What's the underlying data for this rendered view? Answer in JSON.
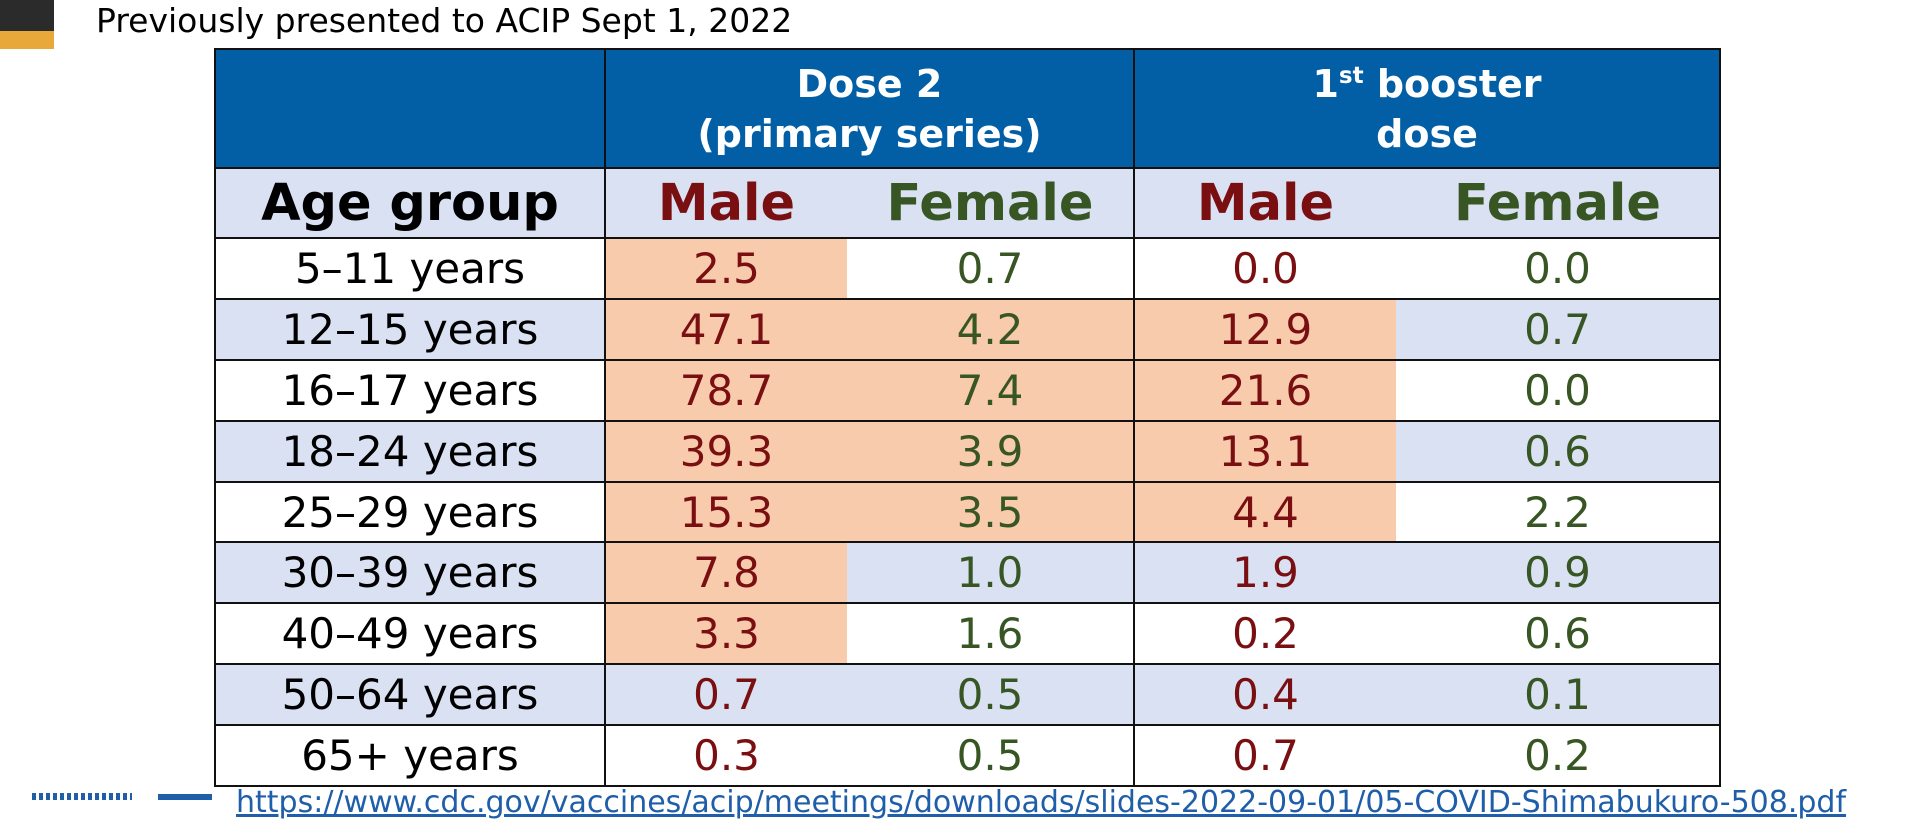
{
  "note": "Previously presented to ACIP Sept 1, 2022",
  "table": {
    "header_top": {
      "dose2_line1": "Dose 2",
      "dose2_line2": "(primary series)",
      "booster_ordinal": "1",
      "booster_sup": "st",
      "booster_line1_rest": " booster",
      "booster_line2": "dose"
    },
    "header_sub": {
      "age": "Age group",
      "male": "Male",
      "female": "Female"
    },
    "rows": [
      {
        "age": "5–11 years",
        "dose2_male": "2.5",
        "dose2_female": "0.7",
        "booster_male": "0.0",
        "booster_female": "0.0"
      },
      {
        "age": "12–15 years",
        "dose2_male": "47.1",
        "dose2_female": "4.2",
        "booster_male": "12.9",
        "booster_female": "0.7"
      },
      {
        "age": "16–17 years",
        "dose2_male": "78.7",
        "dose2_female": "7.4",
        "booster_male": "21.6",
        "booster_female": "0.0"
      },
      {
        "age": "18–24 years",
        "dose2_male": "39.3",
        "dose2_female": "3.9",
        "booster_male": "13.1",
        "booster_female": "0.6"
      },
      {
        "age": "25–29 years",
        "dose2_male": "15.3",
        "dose2_female": "3.5",
        "booster_male": "4.4",
        "booster_female": "2.2"
      },
      {
        "age": "30–39 years",
        "dose2_male": "7.8",
        "dose2_female": "1.0",
        "booster_male": "1.9",
        "booster_female": "0.9"
      },
      {
        "age": "40–49 years",
        "dose2_male": "3.3",
        "dose2_female": "1.6",
        "booster_male": "0.2",
        "booster_female": "0.6"
      },
      {
        "age": "50–64 years",
        "dose2_male": "0.7",
        "dose2_female": "0.5",
        "booster_male": "0.4",
        "booster_female": "0.1"
      },
      {
        "age": "65+ years",
        "dose2_male": "0.3",
        "dose2_female": "0.5",
        "booster_male": "0.7",
        "booster_female": "0.2"
      }
    ]
  },
  "footer_link": "https://www.cdc.gov/vaccines/acip/meetings/downloads/slides-2022-09-01/05-COVID-Shimabukuro-508.pdf",
  "colors": {
    "header_blue": "#025fa6",
    "row_alt": "#d9e1f3",
    "highlight": "#f8cbad",
    "male_text": "#7a0f12",
    "female_text": "#375623"
  }
}
